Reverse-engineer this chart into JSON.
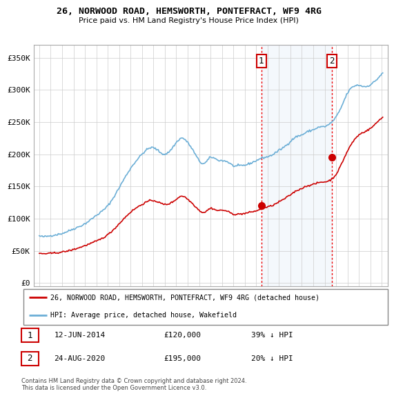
{
  "title": "26, NORWOOD ROAD, HEMSWORTH, PONTEFRACT, WF9 4RG",
  "subtitle": "Price paid vs. HM Land Registry's House Price Index (HPI)",
  "ylabel_ticks": [
    "£0",
    "£50K",
    "£100K",
    "£150K",
    "£200K",
    "£250K",
    "£300K",
    "£350K"
  ],
  "ytick_values": [
    0,
    50000,
    100000,
    150000,
    200000,
    250000,
    300000,
    350000
  ],
  "ylim": [
    -5000,
    370000
  ],
  "hpi_color": "#6baed6",
  "price_color": "#cc0000",
  "vline_color": "#ee0000",
  "annotation1": {
    "label": "1",
    "date": "12-JUN-2014",
    "price": "£120,000",
    "hpi": "39% ↓ HPI"
  },
  "annotation2": {
    "label": "2",
    "date": "24-AUG-2020",
    "price": "£195,000",
    "hpi": "20% ↓ HPI"
  },
  "legend_line1": "26, NORWOOD ROAD, HEMSWORTH, PONTEFRACT, WF9 4RG (detached house)",
  "legend_line2": "HPI: Average price, detached house, Wakefield",
  "footer": "Contains HM Land Registry data © Crown copyright and database right 2024.\nThis data is licensed under the Open Government Licence v3.0.",
  "sale1_x": 2014.45,
  "sale1_y": 120000,
  "sale2_x": 2020.65,
  "sale2_y": 195000,
  "xlim": [
    1994.5,
    2025.5
  ],
  "xticks": [
    1995,
    1996,
    1997,
    1998,
    1999,
    2000,
    2001,
    2002,
    2003,
    2004,
    2005,
    2006,
    2007,
    2008,
    2009,
    2010,
    2011,
    2012,
    2013,
    2014,
    2015,
    2016,
    2017,
    2018,
    2019,
    2020,
    2021,
    2022,
    2023,
    2024,
    2025
  ]
}
